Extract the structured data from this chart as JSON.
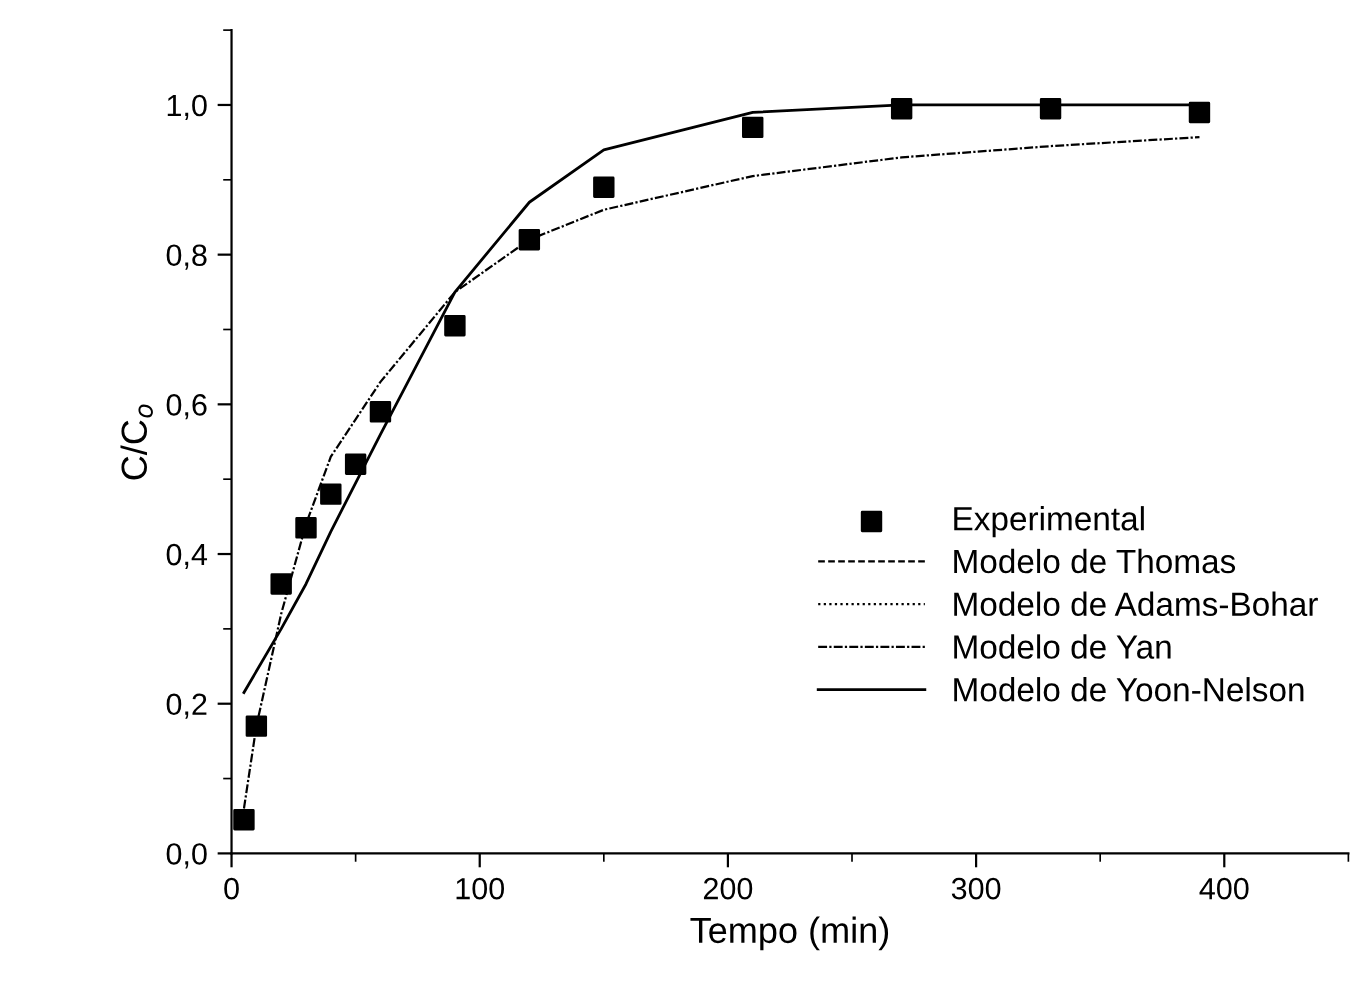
{
  "chart_data": {
    "type": "line",
    "xlabel": "Tempo (min)",
    "ylabel": "C/C$_{o}$",
    "xlim": [
      0,
      450
    ],
    "xticks": [
      0,
      100,
      200,
      300,
      400
    ],
    "ylim": [
      0,
      1.1
    ],
    "yticks": [
      {
        "value": 0,
        "label": "0,0"
      },
      {
        "value": 0.2,
        "label": "0,2"
      },
      {
        "value": 0.4,
        "label": "0,4"
      },
      {
        "value": 0.6,
        "label": "0,6"
      },
      {
        "value": 0.8,
        "label": "0,8"
      },
      {
        "value": 1.0,
        "label": "1,0"
      }
    ],
    "grid": false,
    "legend": "bottom right",
    "series": [
      {
        "name": "Experimental",
        "type": "scatter",
        "marker": "square",
        "color": "#000000",
        "x": [
          5,
          10,
          20,
          30,
          40,
          50,
          60,
          90,
          120,
          150,
          210,
          270,
          330,
          390
        ],
        "values": [
          0.045,
          0.17,
          0.36,
          0.435,
          0.48,
          0.52,
          0.59,
          0.705,
          0.82,
          0.89,
          0.97,
          0.995,
          0.995,
          0.99
        ]
      },
      {
        "name": "Modelo de Thomas",
        "line_style": "dashed",
        "color": "#000000"
      },
      {
        "name": "Modelo de Adams-Bohar",
        "line_style": "dotted",
        "color": "#000000"
      },
      {
        "name": "Modelo de Yan",
        "line_style": "dashdot",
        "color": "#000000",
        "x": [
          5,
          10,
          20,
          30,
          40,
          50,
          60,
          90,
          120,
          150,
          210,
          270,
          330,
          390
        ],
        "values": [
          0.06,
          0.17,
          0.32,
          0.44,
          0.53,
          0.58,
          0.63,
          0.75,
          0.82,
          0.86,
          0.905,
          0.93,
          0.945,
          0.957
        ]
      },
      {
        "name": "Modelo de Yoon-Nelson",
        "line_style": "solid",
        "color": "#000000",
        "x": [
          5,
          20,
          30,
          40,
          60,
          90,
          120,
          150,
          210,
          270,
          330,
          390
        ],
        "values": [
          0.215,
          0.3,
          0.36,
          0.43,
          0.56,
          0.75,
          0.87,
          0.94,
          0.99,
          1.0,
          1.0,
          1.0
        ]
      }
    ]
  }
}
